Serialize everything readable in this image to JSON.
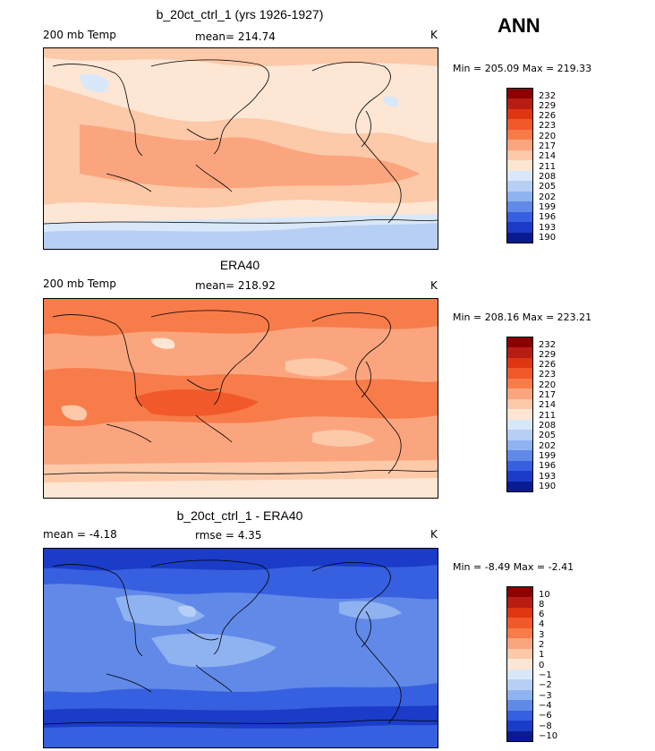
{
  "season": "ANN",
  "panels": [
    {
      "title": "b_20ct_ctrl_1 (yrs 1926-1927)",
      "left_label": "200 mb Temp",
      "center_label": "mean= 214.74",
      "right_label": "K",
      "minmax": "Min = 205.09 Max = 219.33",
      "colorbar_labels": [
        "232",
        "229",
        "226",
        "223",
        "220",
        "217",
        "214",
        "211",
        "208",
        "205",
        "202",
        "199",
        "196",
        "193",
        "190"
      ]
    },
    {
      "title": "ERA40",
      "left_label": "200 mb Temp",
      "center_label": "mean= 218.92",
      "right_label": "K",
      "minmax": "Min = 208.16 Max = 223.21",
      "colorbar_labels": [
        "232",
        "229",
        "226",
        "223",
        "220",
        "217",
        "214",
        "211",
        "208",
        "205",
        "202",
        "199",
        "196",
        "193",
        "190"
      ]
    },
    {
      "title": "b_20ct_ctrl_1 - ERA40",
      "left_label": "mean =  -4.18",
      "center_label": "rmse =    4.35",
      "right_label": "K",
      "minmax": "Min =  -8.49 Max =  -2.41",
      "colorbar_labels": [
        "10",
        "8",
        "6",
        "4",
        "3",
        "2",
        "1",
        "0",
        "−1",
        "−2",
        "−3",
        "−4",
        "−6",
        "−8",
        "−10"
      ]
    }
  ],
  "colors": {
    "colorbar_scale": [
      "#8b0000",
      "#b81d13",
      "#e03512",
      "#f2592a",
      "#f77c4a",
      "#fba57e",
      "#fcc9a9",
      "#fde6d4",
      "#d8e8f8",
      "#b7cff5",
      "#8fb2f0",
      "#6189e8",
      "#3760e0",
      "#1a3cc8",
      "#0a1a90"
    ]
  }
}
